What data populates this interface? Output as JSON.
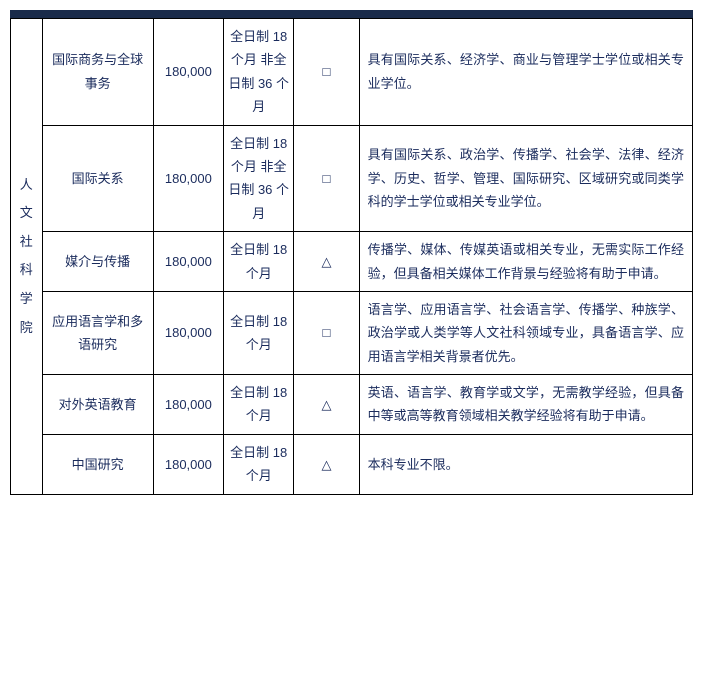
{
  "table": {
    "faculty": "人文社科学院",
    "rows": [
      {
        "program": "国际商务与全球事务",
        "fee": "180,000",
        "duration": "全日制 18 个月 非全日制 36 个月",
        "symbol": "□",
        "requirements": "具有国际关系、经济学、商业与管理学士学位或相关专业学位。"
      },
      {
        "program": "国际关系",
        "fee": "180,000",
        "duration": "全日制 18 个月 非全日制 36 个月",
        "symbol": "□",
        "requirements": "具有国际关系、政治学、传播学、社会学、法律、经济学、历史、哲学、管理、国际研究、区域研究或同类学科的学士学位或相关专业学位。"
      },
      {
        "program": "媒介与传播",
        "fee": "180,000",
        "duration": "全日制 18 个月",
        "symbol": "△",
        "requirements": "传播学、媒体、传媒英语或相关专业，无需实际工作经验，但具备相关媒体工作背景与经验将有助于申请。"
      },
      {
        "program": "应用语言学和多语研究",
        "fee": "180,000",
        "duration": "全日制 18 个月",
        "symbol": "□",
        "requirements": "语言学、应用语言学、社会语言学、传播学、种族学、政治学或人类学等人文社科领域专业，具备语言学、应用语言学相关背景者优先。"
      },
      {
        "program": "对外英语教育",
        "fee": "180,000",
        "duration": "全日制 18 个月",
        "symbol": "△",
        "requirements": "英语、语言学、教育学或文学，无需教学经验，但具备中等或高等教育领域相关教学经验将有助于申请。"
      },
      {
        "program": "中国研究",
        "fee": "180,000",
        "duration": "全日制 18 个月",
        "symbol": "△",
        "requirements": "本科专业不限。"
      }
    ]
  },
  "colors": {
    "topbar": "#1a2b4a",
    "text": "#1a2b5c",
    "border": "#000000",
    "background": "#ffffff"
  },
  "typography": {
    "cell_fontsize": 13,
    "font_family": "Microsoft YaHei"
  }
}
